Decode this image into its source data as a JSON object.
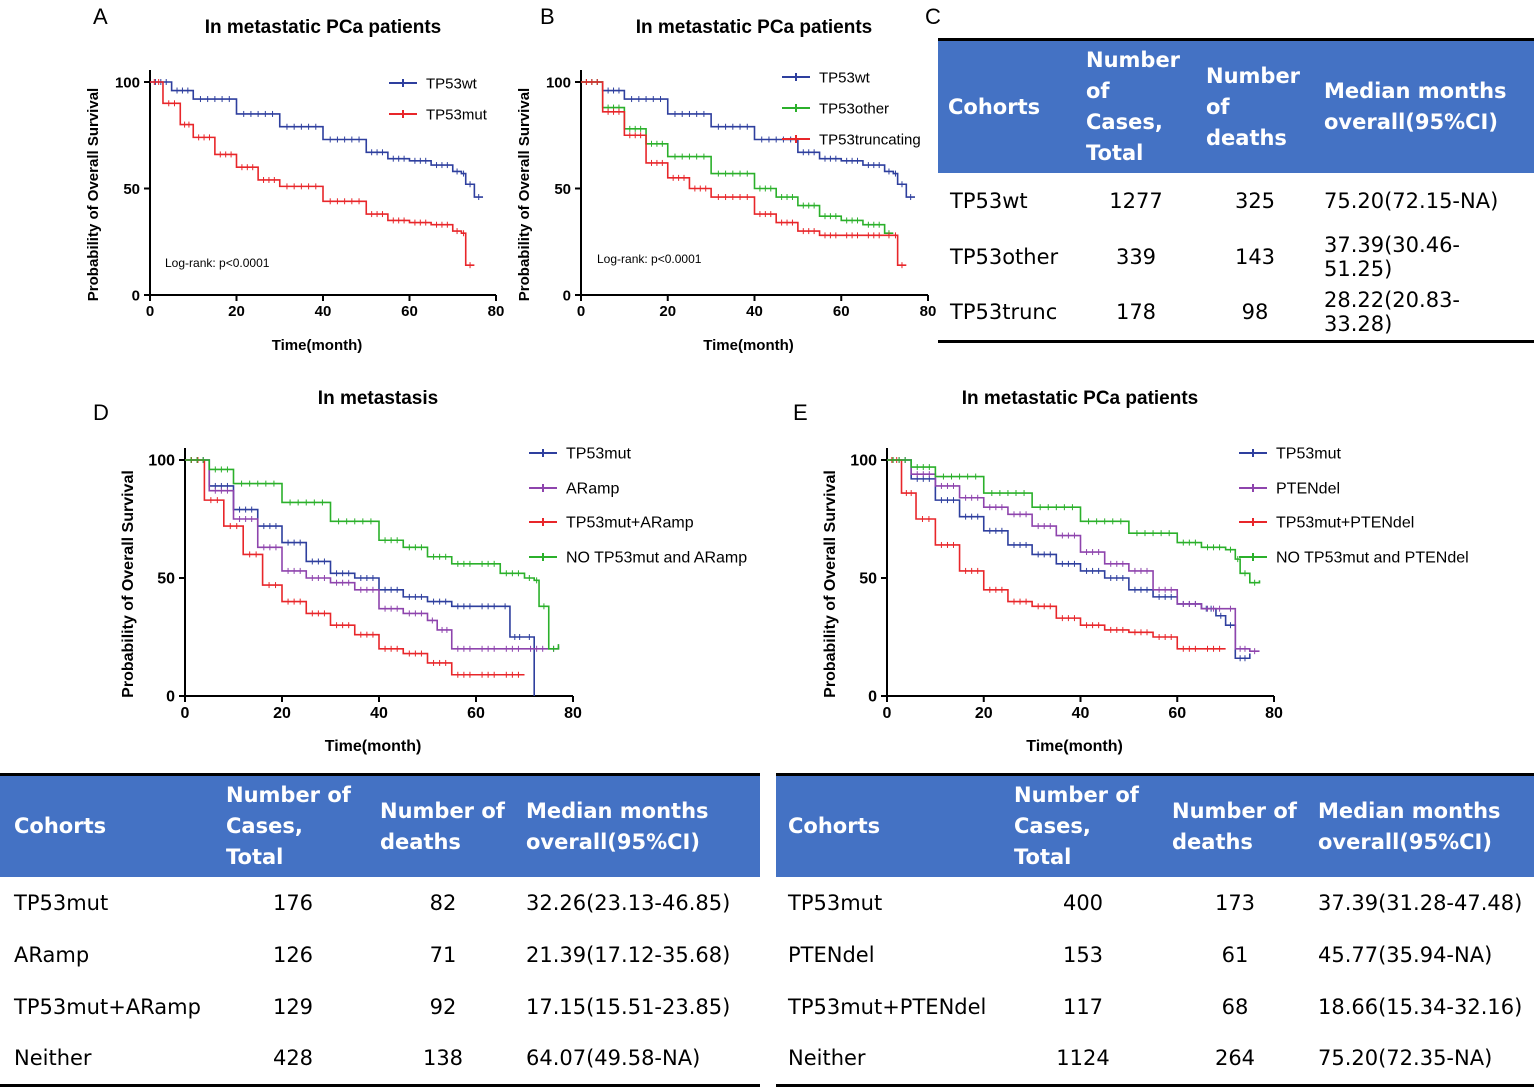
{
  "panel_labels": {
    "A": "A",
    "B": "B",
    "C": "C",
    "D": "D",
    "E": "E"
  },
  "chart_data": [
    {
      "panel": "A",
      "type": "line",
      "title": "In metastatic PCa patients",
      "xlabel": "Time(month)",
      "ylabel": "Probability of Overall Survival",
      "xlim": [
        0,
        80
      ],
      "ylim": [
        0,
        100
      ],
      "xticks": [
        0,
        20,
        40,
        60,
        80
      ],
      "yticks": [
        0,
        50,
        100
      ],
      "annotation": "Log-rank: p<0.0001",
      "series": [
        {
          "name": "TP53wt",
          "color": "#2E3F9E",
          "x": [
            0,
            5,
            10,
            20,
            30,
            40,
            50,
            55,
            60,
            65,
            70,
            72,
            73,
            75,
            77
          ],
          "y": [
            100,
            96,
            92,
            85,
            79,
            73,
            67,
            64,
            63,
            61,
            58,
            57,
            52,
            46,
            46
          ]
        },
        {
          "name": "TP53mut",
          "color": "#E8262A",
          "x": [
            0,
            3,
            7,
            10,
            15,
            20,
            25,
            30,
            40,
            50,
            55,
            60,
            65,
            70,
            72,
            73,
            75
          ],
          "y": [
            100,
            90,
            80,
            74,
            66,
            60,
            54,
            51,
            44,
            38,
            35,
            34,
            33,
            30,
            29,
            14,
            14
          ]
        }
      ]
    },
    {
      "panel": "B",
      "type": "line",
      "title": "In metastatic PCa patients",
      "xlabel": "Time(month)",
      "ylabel": "Probability of Overall Survival",
      "xlim": [
        0,
        80
      ],
      "ylim": [
        0,
        100
      ],
      "xticks": [
        0,
        20,
        40,
        60,
        80
      ],
      "yticks": [
        0,
        50,
        100
      ],
      "annotation": "Log-rank: p<0.0001",
      "series": [
        {
          "name": "TP53wt",
          "color": "#2E3F9E",
          "x": [
            0,
            5,
            10,
            20,
            30,
            40,
            50,
            55,
            60,
            65,
            70,
            72,
            73,
            75,
            77
          ],
          "y": [
            100,
            96,
            92,
            85,
            79,
            73,
            67,
            64,
            63,
            61,
            58,
            57,
            52,
            46,
            46
          ]
        },
        {
          "name": "TP53other",
          "color": "#2BB02B",
          "x": [
            0,
            5,
            10,
            15,
            20,
            30,
            40,
            45,
            50,
            55,
            60,
            65,
            70,
            72
          ],
          "y": [
            100,
            88,
            78,
            71,
            65,
            57,
            50,
            46,
            42,
            37,
            35,
            33,
            29,
            29
          ]
        },
        {
          "name": "TP53truncating",
          "color": "#E8262A",
          "x": [
            0,
            5,
            10,
            15,
            20,
            25,
            30,
            40,
            45,
            50,
            55,
            60,
            65,
            70,
            72,
            73,
            75
          ],
          "y": [
            100,
            86,
            75,
            62,
            55,
            50,
            46,
            38,
            34,
            30,
            28,
            28,
            28,
            28,
            28,
            14,
            14
          ]
        }
      ]
    },
    {
      "panel": "D",
      "type": "line",
      "title": "In metastasis",
      "xlabel": "Time(month)",
      "ylabel": "Probability of Overall Survival",
      "xlim": [
        0,
        80
      ],
      "ylim": [
        0,
        100
      ],
      "xticks": [
        0,
        20,
        40,
        60,
        80
      ],
      "yticks": [
        0,
        50,
        100
      ],
      "series": [
        {
          "name": "TP53mut",
          "color": "#2E3F9E",
          "x": [
            0,
            5,
            10,
            15,
            20,
            25,
            30,
            35,
            40,
            45,
            50,
            55,
            60,
            65,
            67,
            70,
            72
          ],
          "y": [
            100,
            89,
            79,
            72,
            65,
            57,
            52,
            50,
            45,
            42,
            40,
            38,
            38,
            38,
            25,
            25,
            0
          ]
        },
        {
          "name": "ARamp",
          "color": "#8E44AD",
          "x": [
            0,
            5,
            10,
            15,
            20,
            25,
            30,
            35,
            40,
            45,
            50,
            52,
            55,
            60,
            65,
            70,
            75,
            77
          ],
          "y": [
            100,
            87,
            75,
            63,
            53,
            50,
            48,
            45,
            37,
            35,
            32,
            28,
            20,
            20,
            20,
            20,
            20,
            21
          ]
        },
        {
          "name": "TP53mut+ARamp",
          "color": "#E8262A",
          "x": [
            0,
            4,
            8,
            12,
            16,
            20,
            25,
            30,
            35,
            40,
            45,
            50,
            55,
            60,
            65,
            70
          ],
          "y": [
            100,
            83,
            72,
            60,
            47,
            40,
            35,
            30,
            26,
            20,
            18,
            14,
            9,
            9,
            9,
            9
          ]
        },
        {
          "name": "NO TP53mut and ARamp",
          "color": "#2BB02B",
          "x": [
            0,
            5,
            10,
            20,
            30,
            40,
            45,
            50,
            55,
            60,
            65,
            70,
            72,
            73,
            75,
            77
          ],
          "y": [
            100,
            96,
            90,
            82,
            74,
            66,
            63,
            59,
            56,
            56,
            52,
            50,
            49,
            38,
            20,
            22
          ]
        }
      ]
    },
    {
      "panel": "E",
      "type": "line",
      "title": "In metastatic PCa patients",
      "xlabel": "Time(month)",
      "ylabel": "Probability of Overall Survival",
      "xlim": [
        0,
        80
      ],
      "ylim": [
        0,
        100
      ],
      "xticks": [
        0,
        20,
        40,
        60,
        80
      ],
      "yticks": [
        0,
        50,
        100
      ],
      "series": [
        {
          "name": "TP53mut",
          "color": "#2E3F9E",
          "x": [
            0,
            5,
            10,
            15,
            20,
            25,
            30,
            35,
            40,
            45,
            50,
            55,
            60,
            65,
            68,
            70,
            72,
            75
          ],
          "y": [
            100,
            92,
            83,
            76,
            70,
            64,
            60,
            56,
            53,
            50,
            45,
            42,
            39,
            37,
            34,
            30,
            16,
            18
          ]
        },
        {
          "name": "PTENdel",
          "color": "#8E44AD",
          "x": [
            0,
            5,
            10,
            15,
            20,
            25,
            30,
            35,
            40,
            45,
            50,
            55,
            60,
            65,
            70,
            72,
            75,
            77
          ],
          "y": [
            100,
            94,
            89,
            84,
            80,
            77,
            72,
            68,
            61,
            56,
            53,
            45,
            39,
            37,
            37,
            20,
            19,
            19
          ]
        },
        {
          "name": "TP53mut+PTENdel",
          "color": "#E8262A",
          "x": [
            0,
            3,
            6,
            10,
            15,
            20,
            25,
            30,
            35,
            40,
            45,
            50,
            55,
            60,
            65,
            70
          ],
          "y": [
            100,
            86,
            75,
            64,
            53,
            45,
            40,
            38,
            33,
            30,
            28,
            27,
            25,
            20,
            20,
            20
          ]
        },
        {
          "name": "NO TP53mut and PTENdel",
          "color": "#2BB02B",
          "x": [
            0,
            5,
            10,
            20,
            30,
            40,
            50,
            60,
            65,
            70,
            72,
            73,
            75,
            77
          ],
          "y": [
            100,
            97,
            93,
            86,
            80,
            74,
            69,
            65,
            63,
            62,
            58,
            52,
            48,
            49
          ]
        }
      ]
    }
  ],
  "tables": {
    "C": {
      "headers": [
        "Cohorts",
        "Number of Cases, Total",
        "Number of deaths",
        "Median months overall(95%CI)"
      ],
      "rows": [
        [
          "TP53wt",
          "1277",
          "325",
          "75.20(72.15-NA)"
        ],
        [
          "TP53other",
          "339",
          "143",
          "37.39(30.46-51.25)"
        ],
        [
          "TP53trunc",
          "178",
          "98",
          "28.22(20.83-33.28)"
        ]
      ]
    },
    "D": {
      "headers": [
        "Cohorts",
        "Number of Cases, Total",
        "Number of deaths",
        "Median months overall(95%CI)"
      ],
      "rows": [
        [
          "TP53mut",
          "176",
          "82",
          "32.26(23.13-46.85)"
        ],
        [
          "ARamp",
          "126",
          "71",
          "21.39(17.12-35.68)"
        ],
        [
          "TP53mut+ARamp",
          "129",
          "92",
          "17.15(15.51-23.85)"
        ],
        [
          "Neither",
          "428",
          "138",
          "64.07(49.58-NA)"
        ]
      ]
    },
    "E": {
      "headers": [
        "Cohorts",
        "Number of Cases, Total",
        "Number of deaths",
        "Median months overall(95%CI)"
      ],
      "rows": [
        [
          "TP53mut",
          "400",
          "173",
          "37.39(31.28-47.48)"
        ],
        [
          "PTENdel",
          "153",
          "61",
          "45.77(35.94-NA)"
        ],
        [
          "TP53mut+PTENdel",
          "117",
          "68",
          "18.66(15.34-32.16)"
        ],
        [
          "Neither",
          "1124",
          "264",
          "75.20(72.35-NA)"
        ]
      ]
    }
  }
}
